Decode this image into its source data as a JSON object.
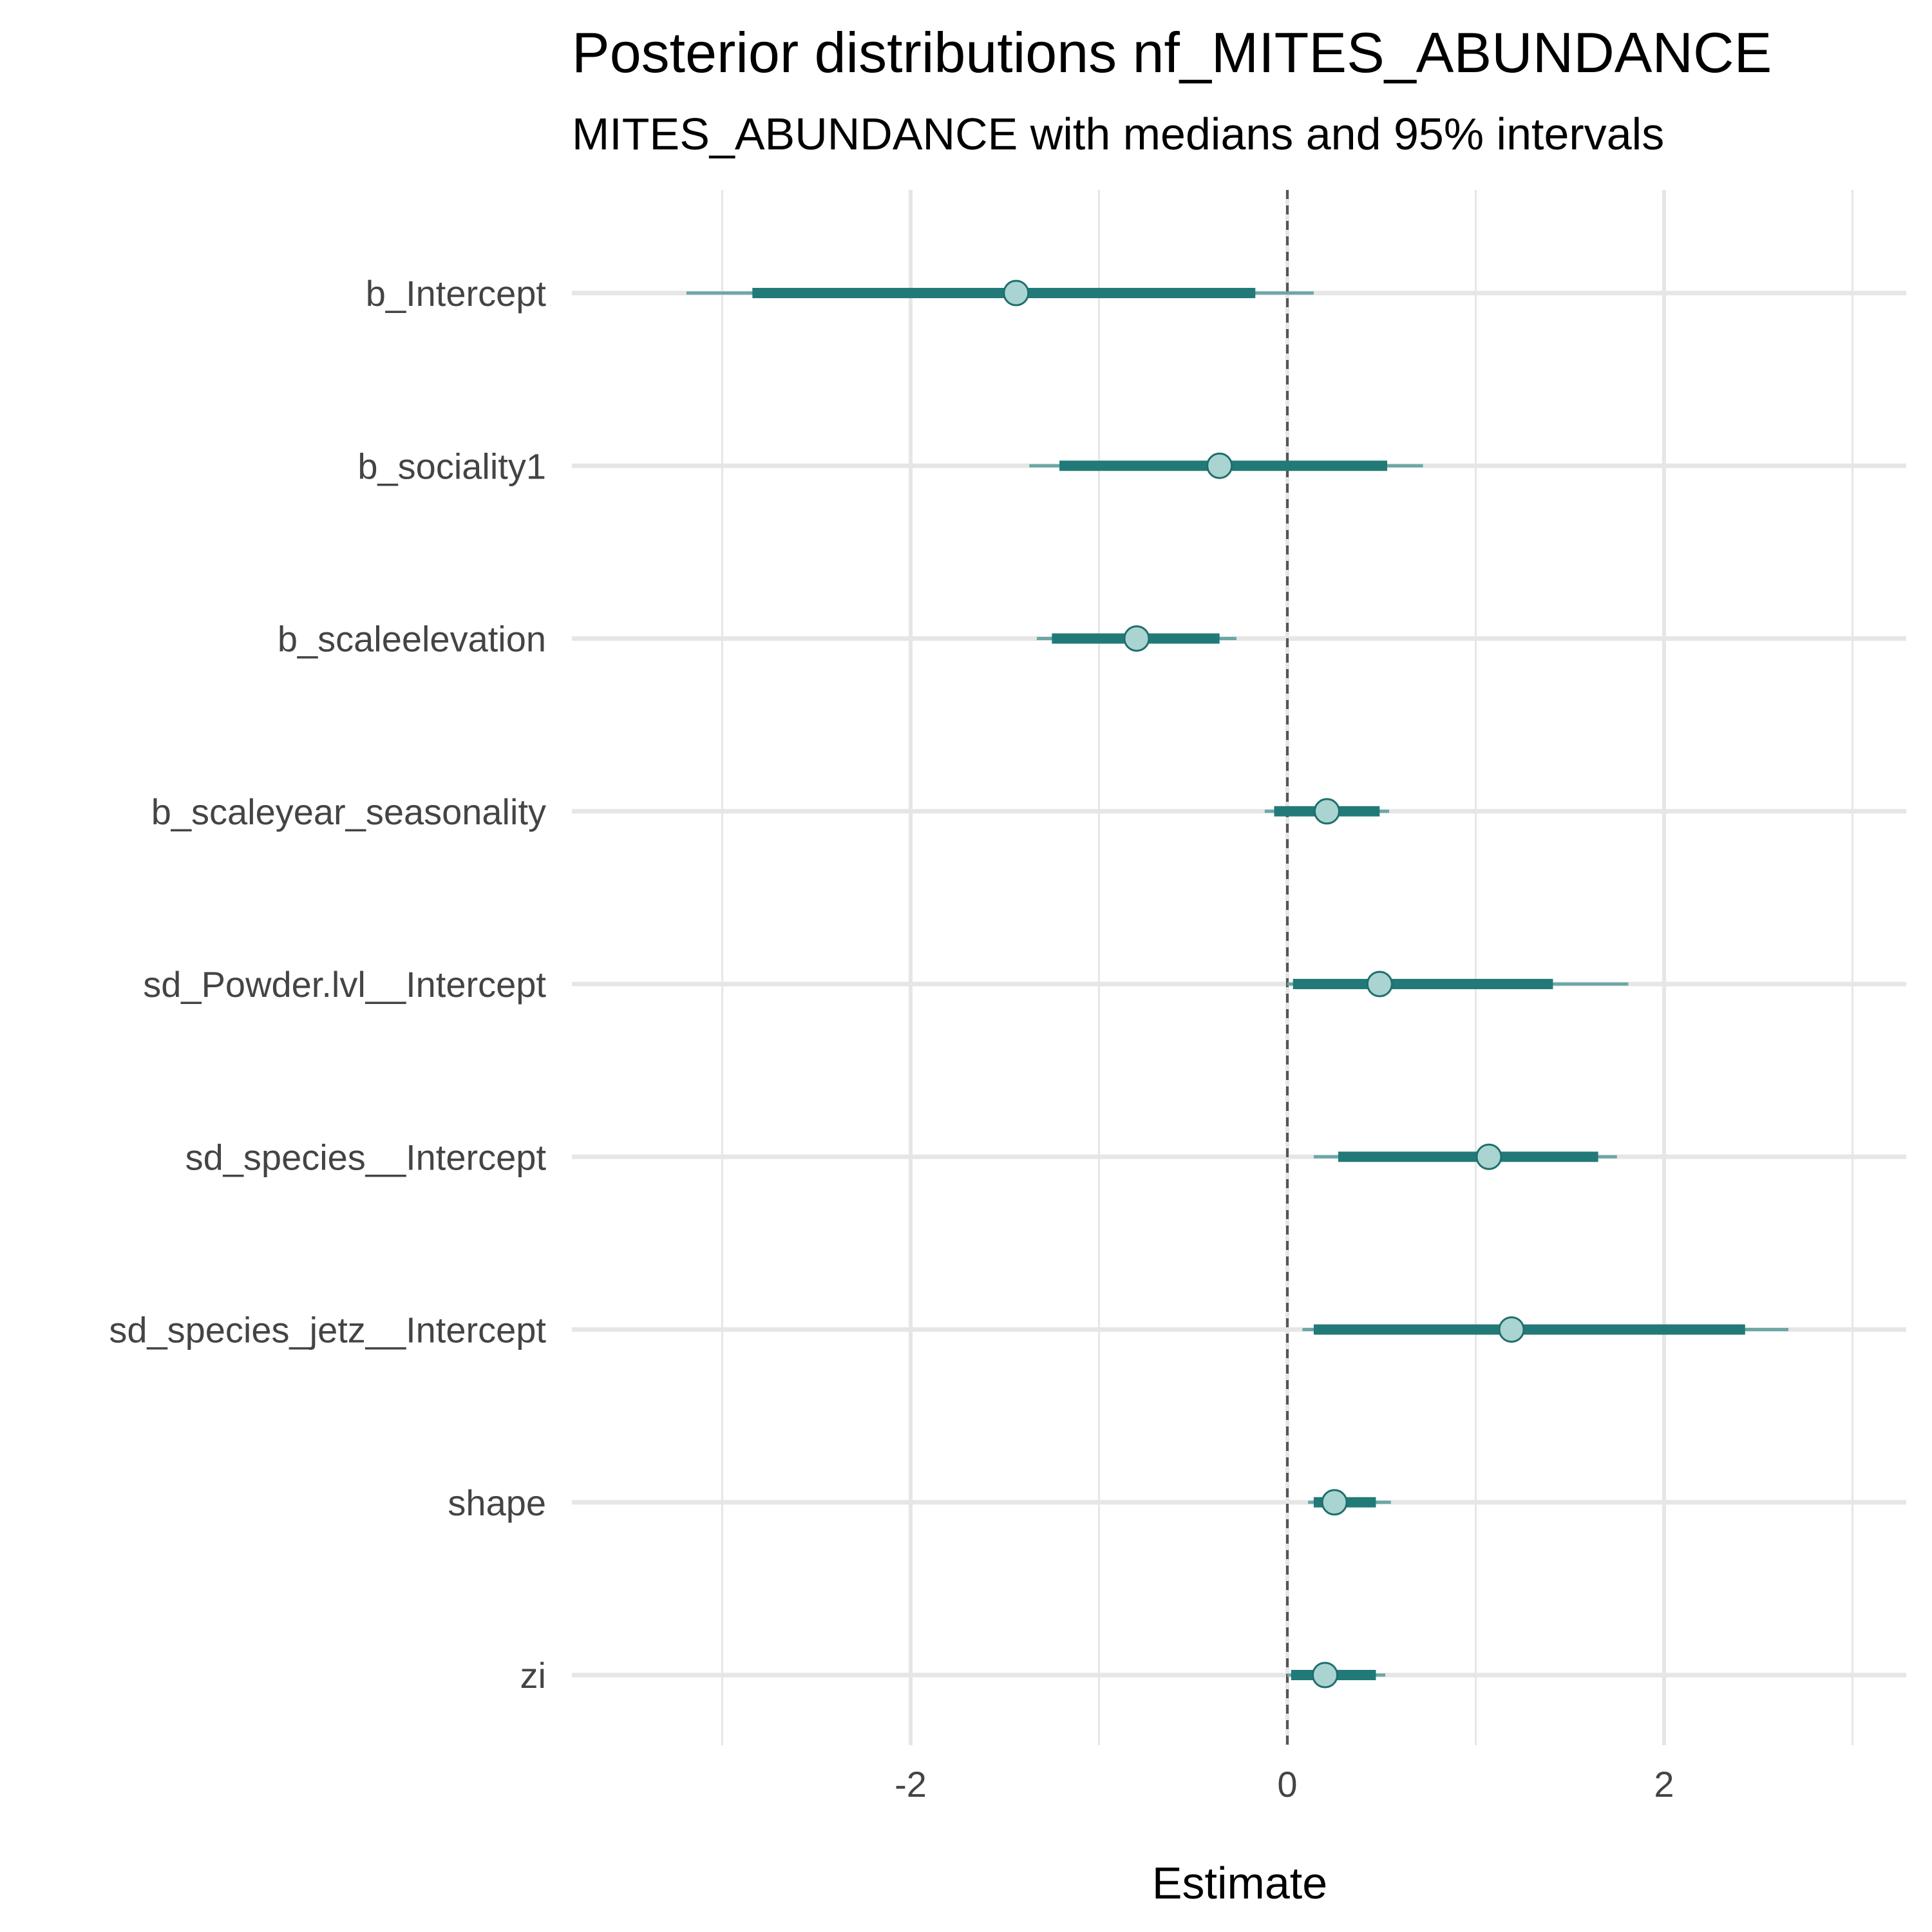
{
  "chart_data": {
    "type": "interval",
    "title": "Posterior distributions nf_MITES_ABUNDANCE",
    "subtitle": "MITES_ABUNDANCE with medians and 95% intervals",
    "xlabel": "Estimate",
    "ylabel": "",
    "xlim": [
      -3.5,
      3.3
    ],
    "x_ticks": [
      -2,
      0,
      2
    ],
    "x_minor_gridlines": [
      -3,
      -1,
      1,
      3
    ],
    "reference_line": 0,
    "grid": true,
    "categories": [
      "b_Intercept",
      "b_sociality1",
      "b_scaleelevation",
      "b_scaleyear_seasonality",
      "sd_Powder.lvl__Intercept",
      "sd_species__Intercept",
      "sd_species_jetz__Intercept",
      "shape",
      "zi"
    ],
    "series": [
      {
        "median": [
          -1.44,
          -0.36,
          -0.8,
          0.21,
          0.49,
          1.07,
          1.19,
          0.25,
          0.2
        ],
        "inner_lower": [
          -2.84,
          -1.21,
          -1.25,
          -0.07,
          0.03,
          0.27,
          0.14,
          0.14,
          0.02
        ],
        "inner_upper": [
          -0.17,
          0.53,
          -0.36,
          0.49,
          1.41,
          1.65,
          2.43,
          0.47,
          0.47
        ],
        "outer_lower": [
          -3.19,
          -1.37,
          -1.33,
          -0.12,
          0.0,
          0.14,
          0.08,
          0.11,
          0.0
        ],
        "outer_upper": [
          0.14,
          0.72,
          -0.27,
          0.54,
          1.81,
          1.75,
          2.66,
          0.55,
          0.52
        ]
      }
    ],
    "colors": {
      "inner_interval": "#217a78",
      "outer_interval": "#6aa7a5",
      "point_fill": "#a9d4d1",
      "point_stroke": "#1f6f6c",
      "gridline": "#e6e6e6",
      "reference_line": "#555555"
    }
  }
}
